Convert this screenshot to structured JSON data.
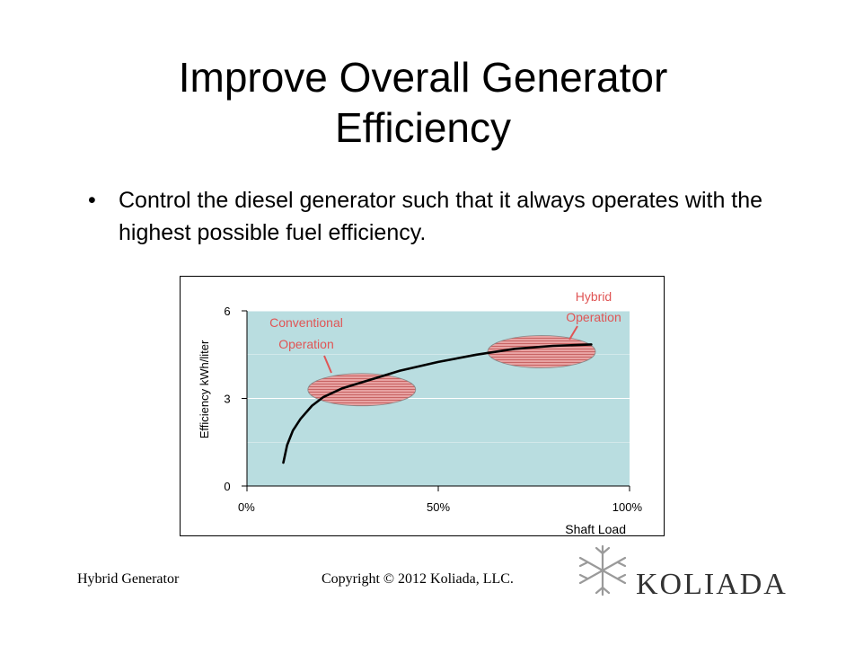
{
  "slide": {
    "title_line1": "Improve Overall Generator",
    "title_line2": "Efficiency",
    "bullet_symbol": "•",
    "bullet_text": "Control the diesel generator such that it always operates with the highest possible fuel efficiency."
  },
  "footer": {
    "left": "Hybrid Generator",
    "center": "Copyright © 2012 Koliada, LLC.",
    "logo_text": "KOLIADA",
    "logo_icon": "koliada-snowflake-icon"
  },
  "colors": {
    "plot_bg": "#b9dde0",
    "grid": "#ffffff",
    "curve": "#000000",
    "annotation": "#e05555",
    "ellipse_fill": "#e8a2a2",
    "ellipse_stripe": "#c86464"
  },
  "chart_data": {
    "type": "line",
    "title": "",
    "xlabel": "Shaft Load",
    "ylabel": "Efficiency kWh/liter",
    "xlim": [
      0,
      100
    ],
    "ylim": [
      0,
      6
    ],
    "x_ticks": [
      "0%",
      "50%",
      "100%"
    ],
    "x_tick_values": [
      0,
      50,
      100
    ],
    "y_ticks": [
      "0",
      "3",
      "6"
    ],
    "y_tick_values": [
      0,
      3,
      6
    ],
    "series": [
      {
        "name": "Efficiency",
        "x": [
          9.5,
          10.5,
          12,
          14,
          17,
          20,
          25,
          30,
          40,
          50,
          60,
          70,
          80,
          90
        ],
        "y": [
          0.8,
          1.4,
          1.9,
          2.3,
          2.75,
          3.05,
          3.35,
          3.55,
          3.95,
          4.25,
          4.5,
          4.7,
          4.8,
          4.85
        ]
      }
    ],
    "annotations": [
      {
        "label_line1": "Conventional",
        "label_line2": "Operation",
        "center_x": 30,
        "center_y": 3.3
      },
      {
        "label_line1": "Hybrid",
        "label_line2": "Operation",
        "center_x": 77,
        "center_y": 4.6
      }
    ]
  }
}
